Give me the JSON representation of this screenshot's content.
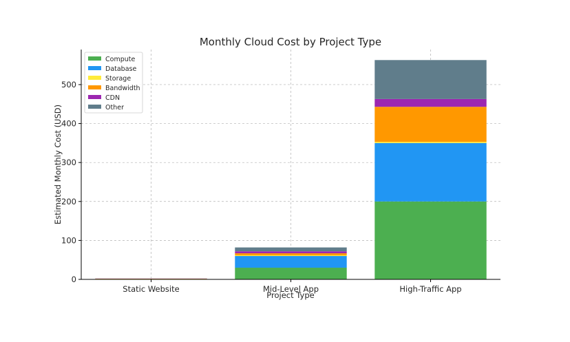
{
  "chart_data": {
    "type": "bar",
    "stacked": true,
    "title": "Monthly Cloud Cost by Project Type",
    "xlabel": "Project Type",
    "ylabel": "Estimated Monthly Cost (USD)",
    "categories": [
      "Static Website",
      "Mid-Level App",
      "High-Traffic App"
    ],
    "ylim": [
      0,
      590
    ],
    "yticks": [
      0,
      100,
      200,
      300,
      400,
      500
    ],
    "grid": true,
    "legend_position": "top-left",
    "series": [
      {
        "name": "Compute",
        "color": "#4caf50",
        "values": [
          0.5,
          30,
          200
        ]
      },
      {
        "name": "Database",
        "color": "#2196f3",
        "values": [
          0.5,
          30,
          150
        ]
      },
      {
        "name": "Storage",
        "color": "#ffeb3b",
        "values": [
          0.25,
          2,
          3
        ]
      },
      {
        "name": "Bandwidth",
        "color": "#ff9800",
        "values": [
          0.5,
          5,
          90
        ]
      },
      {
        "name": "CDN",
        "color": "#9c27b0",
        "values": [
          0.5,
          5,
          20
        ]
      },
      {
        "name": "Other",
        "color": "#607d8b",
        "values": [
          0.25,
          10,
          100
        ]
      }
    ]
  }
}
